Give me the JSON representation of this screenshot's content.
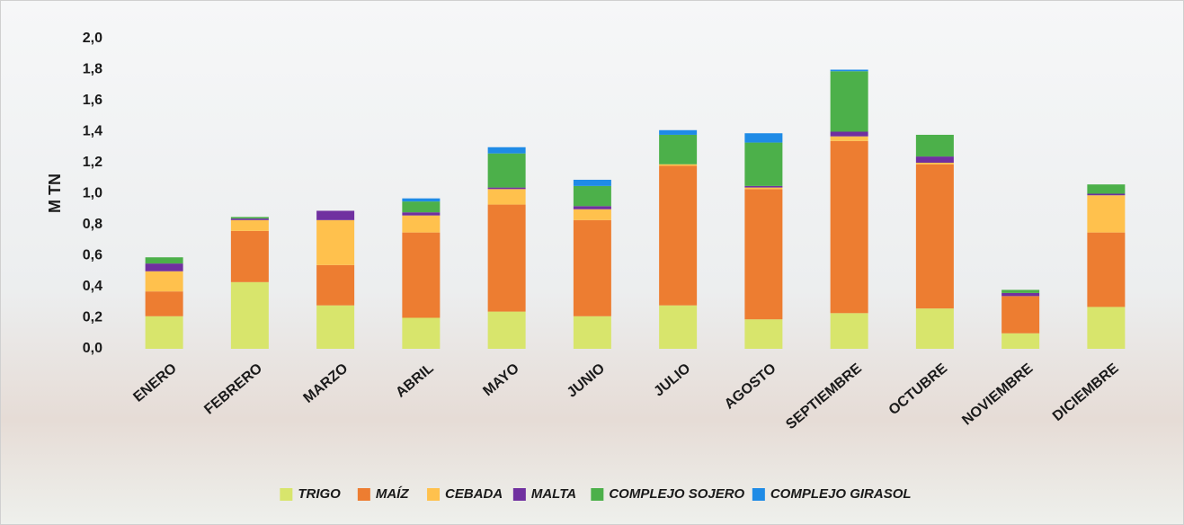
{
  "chart_data": {
    "type": "bar",
    "stacked": true,
    "ylabel": "M TN",
    "categories": [
      "ENERO",
      "FEBRERO",
      "MARZO",
      "ABRIL",
      "MAYO",
      "JUNIO",
      "JULIO",
      "AGOSTO",
      "SEPTIEMBRE",
      "OCTUBRE",
      "NOVIEMBRE",
      "DICIEMBRE"
    ],
    "series": [
      {
        "name": "TRIGO",
        "color": "#d8e56c",
        "values": [
          0.21,
          0.43,
          0.28,
          0.2,
          0.24,
          0.21,
          0.28,
          0.19,
          0.23,
          0.26,
          0.1,
          0.27
        ]
      },
      {
        "name": "MAÍZ",
        "color": "#ed7d31",
        "values": [
          0.16,
          0.33,
          0.26,
          0.55,
          0.69,
          0.62,
          0.9,
          0.84,
          1.11,
          0.93,
          0.24,
          0.48
        ]
      },
      {
        "name": "CEBADA",
        "color": "#ffc14d",
        "values": [
          0.13,
          0.07,
          0.29,
          0.11,
          0.1,
          0.07,
          0.01,
          0.01,
          0.03,
          0.01,
          0,
          0.24
        ]
      },
      {
        "name": "MALTA",
        "color": "#7030a0",
        "values": [
          0.05,
          0.01,
          0.06,
          0.02,
          0.01,
          0.02,
          0,
          0.01,
          0.03,
          0.04,
          0.02,
          0.01
        ]
      },
      {
        "name": "COMPLEJO SOJERO",
        "color": "#4cb04a",
        "values": [
          0.04,
          0.01,
          0,
          0.07,
          0.22,
          0.13,
          0.19,
          0.28,
          0.39,
          0.14,
          0.02,
          0.06
        ]
      },
      {
        "name": "COMPLEJO GIRASOL",
        "color": "#1f8be6",
        "values": [
          0,
          0,
          0,
          0.02,
          0.04,
          0.04,
          0.03,
          0.06,
          0.01,
          0,
          0,
          0
        ]
      }
    ],
    "ylim": [
      0,
      2
    ],
    "yticks": [
      {
        "value": 0,
        "label": "0,0"
      },
      {
        "value": 0.2,
        "label": "0,2"
      },
      {
        "value": 0.4,
        "label": "0,4"
      },
      {
        "value": 0.6,
        "label": "0,6"
      },
      {
        "value": 0.8,
        "label": "0,8"
      },
      {
        "value": 1,
        "label": "1,0"
      },
      {
        "value": 1.2,
        "label": "1,2"
      },
      {
        "value": 1.4,
        "label": "1,4"
      },
      {
        "value": 1.6,
        "label": "1,6"
      },
      {
        "value": 1.8,
        "label": "1,8"
      },
      {
        "value": 2,
        "label": "2,0"
      }
    ],
    "legend": "bottom"
  }
}
